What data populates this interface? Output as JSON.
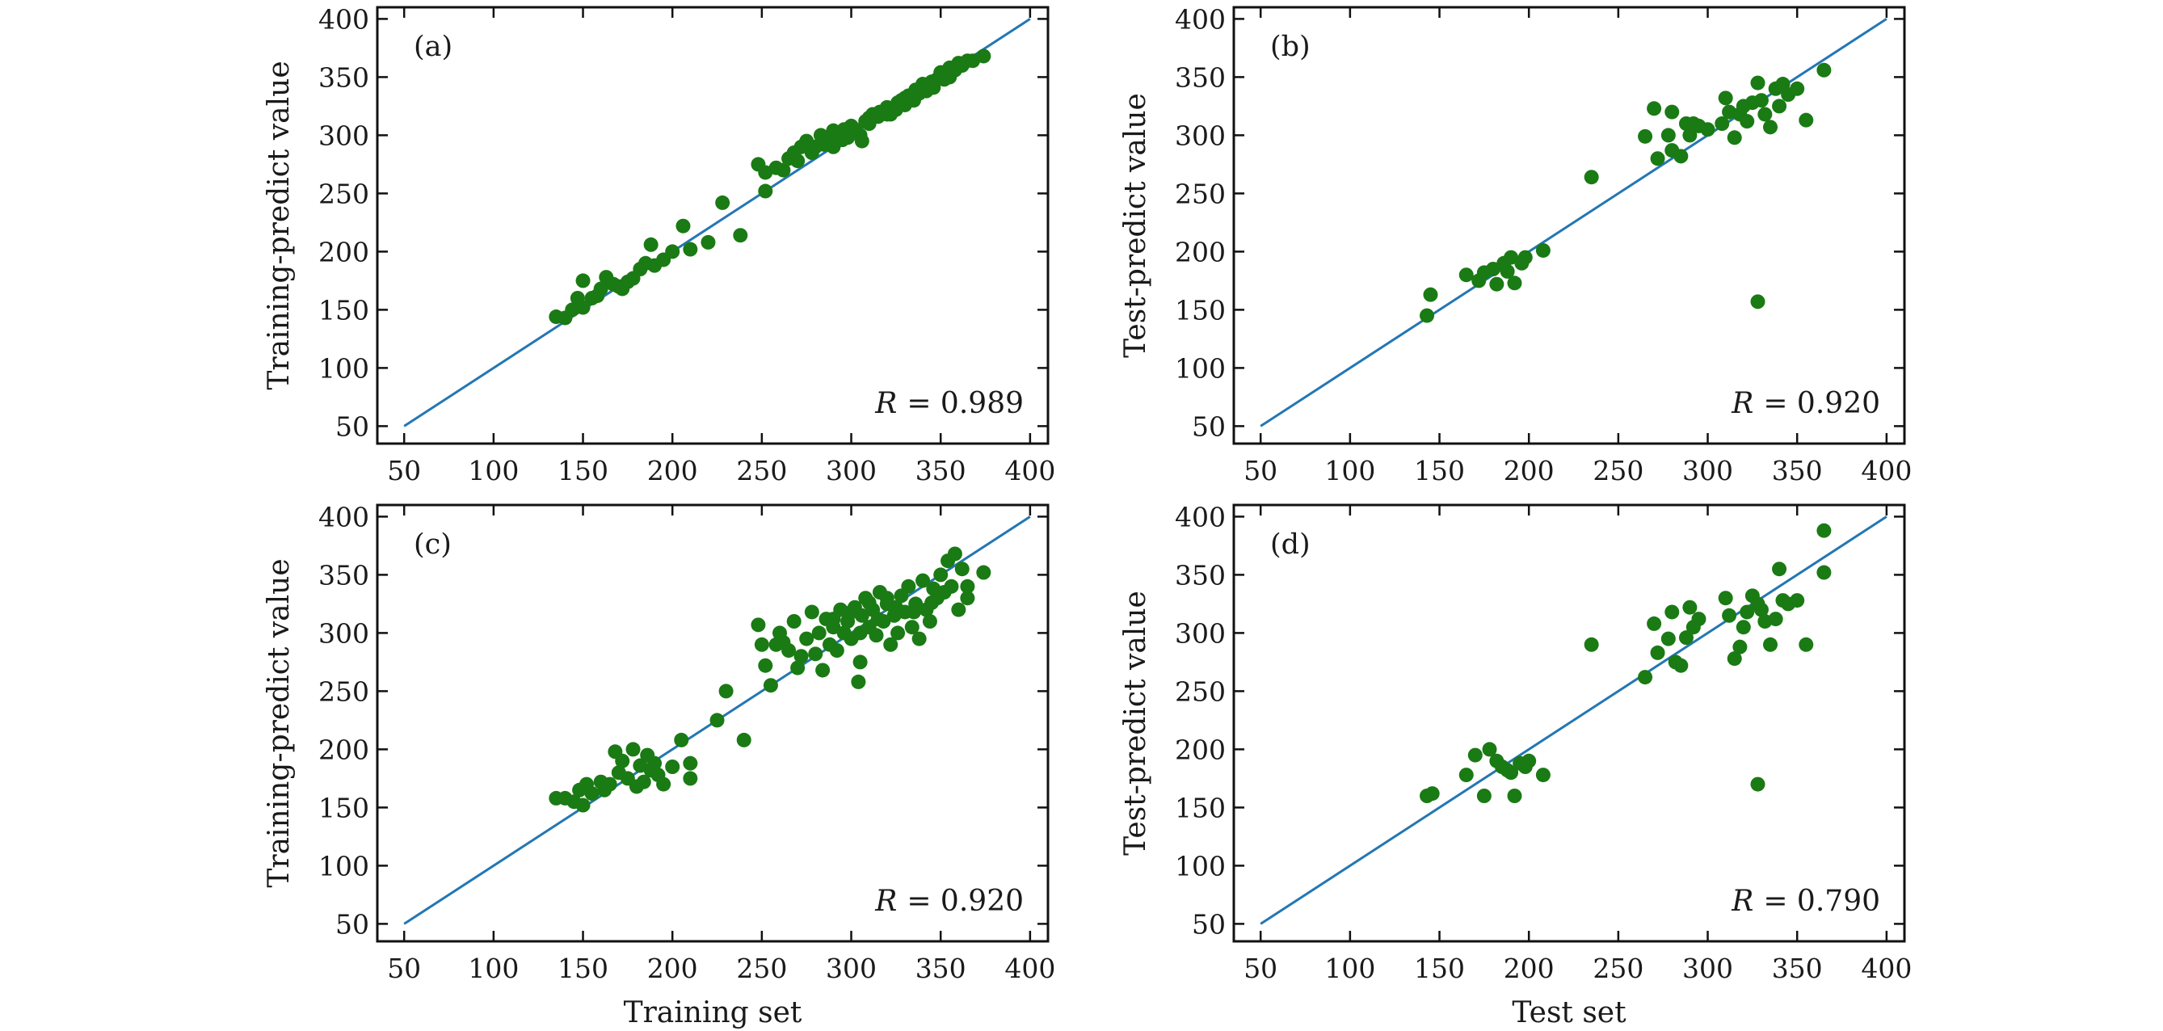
{
  "colors": {
    "points": "#1a7a14",
    "line": "#2477b3",
    "frame": "#111111"
  },
  "chart_data": [
    {
      "panel": "(a)",
      "type": "scatter",
      "xlabel": "",
      "ylabel": "Training-predict value",
      "xlim": [
        35,
        410
      ],
      "ylim": [
        35,
        410
      ],
      "xticks": [
        50,
        100,
        150,
        200,
        250,
        300,
        350,
        400
      ],
      "yticks": [
        50,
        100,
        150,
        200,
        250,
        300,
        350,
        400
      ],
      "r_name": "R",
      "r_value": "= 0.989",
      "reference_line": [
        [
          50,
          50
        ],
        [
          400,
          400
        ]
      ],
      "points": [
        [
          135,
          144
        ],
        [
          140,
          143
        ],
        [
          144,
          150
        ],
        [
          147,
          160
        ],
        [
          150,
          152
        ],
        [
          150,
          175
        ],
        [
          155,
          160
        ],
        [
          158,
          162
        ],
        [
          160,
          168
        ],
        [
          163,
          178
        ],
        [
          167,
          172
        ],
        [
          170,
          170
        ],
        [
          172,
          168
        ],
        [
          175,
          174
        ],
        [
          178,
          177
        ],
        [
          182,
          185
        ],
        [
          185,
          190
        ],
        [
          188,
          206
        ],
        [
          190,
          188
        ],
        [
          195,
          193
        ],
        [
          200,
          200
        ],
        [
          206,
          222
        ],
        [
          210,
          202
        ],
        [
          220,
          208
        ],
        [
          228,
          242
        ],
        [
          238,
          214
        ],
        [
          248,
          275
        ],
        [
          252,
          252
        ],
        [
          252,
          268
        ],
        [
          258,
          272
        ],
        [
          262,
          270
        ],
        [
          265,
          280
        ],
        [
          268,
          285
        ],
        [
          270,
          278
        ],
        [
          272,
          290
        ],
        [
          275,
          295
        ],
        [
          278,
          285
        ],
        [
          280,
          290
        ],
        [
          283,
          300
        ],
        [
          285,
          292
        ],
        [
          288,
          295
        ],
        [
          290,
          304
        ],
        [
          292,
          300
        ],
        [
          295,
          296
        ],
        [
          298,
          298
        ],
        [
          300,
          308
        ],
        [
          302,
          305
        ],
        [
          305,
          300
        ],
        [
          308,
          312
        ],
        [
          310,
          310
        ],
        [
          312,
          318
        ],
        [
          315,
          316
        ],
        [
          318,
          320
        ],
        [
          320,
          324
        ],
        [
          322,
          318
        ],
        [
          325,
          322
        ],
        [
          328,
          330
        ],
        [
          330,
          326
        ],
        [
          332,
          334
        ],
        [
          335,
          330
        ],
        [
          338,
          336
        ],
        [
          340,
          344
        ],
        [
          342,
          338
        ],
        [
          345,
          346
        ],
        [
          348,
          348
        ],
        [
          350,
          352
        ],
        [
          352,
          348
        ],
        [
          355,
          358
        ],
        [
          358,
          356
        ],
        [
          360,
          362
        ],
        [
          362,
          360
        ],
        [
          365,
          364
        ],
        [
          368,
          364
        ],
        [
          374,
          368
        ],
        [
          290,
          290
        ],
        [
          300,
          302
        ],
        [
          310,
          315
        ],
        [
          320,
          318
        ],
        [
          330,
          332
        ],
        [
          340,
          340
        ],
        [
          350,
          354
        ],
        [
          355,
          350
        ],
        [
          296,
          305
        ],
        [
          306,
          295
        ],
        [
          316,
          320
        ],
        [
          326,
          328
        ],
        [
          336,
          339
        ],
        [
          346,
          341
        ]
      ]
    },
    {
      "panel": "(b)",
      "type": "scatter",
      "xlabel": "",
      "ylabel": "Test-predict value",
      "xlim": [
        35,
        410
      ],
      "ylim": [
        35,
        410
      ],
      "xticks": [
        50,
        100,
        150,
        200,
        250,
        300,
        350,
        400
      ],
      "yticks": [
        50,
        100,
        150,
        200,
        250,
        300,
        350,
        400
      ],
      "r_name": "R",
      "r_value": "= 0.920",
      "reference_line": [
        [
          50,
          50
        ],
        [
          400,
          400
        ]
      ],
      "points": [
        [
          143,
          145
        ],
        [
          145,
          163
        ],
        [
          165,
          180
        ],
        [
          172,
          175
        ],
        [
          175,
          182
        ],
        [
          180,
          185
        ],
        [
          182,
          172
        ],
        [
          186,
          190
        ],
        [
          188,
          183
        ],
        [
          190,
          195
        ],
        [
          192,
          173
        ],
        [
          196,
          190
        ],
        [
          198,
          195
        ],
        [
          208,
          201
        ],
        [
          235,
          264
        ],
        [
          265,
          299
        ],
        [
          270,
          323
        ],
        [
          272,
          280
        ],
        [
          278,
          300
        ],
        [
          280,
          320
        ],
        [
          280,
          287
        ],
        [
          285,
          282
        ],
        [
          288,
          310
        ],
        [
          290,
          300
        ],
        [
          292,
          310
        ],
        [
          295,
          308
        ],
        [
          300,
          305
        ],
        [
          308,
          310
        ],
        [
          310,
          332
        ],
        [
          312,
          320
        ],
        [
          315,
          298
        ],
        [
          318,
          318
        ],
        [
          320,
          325
        ],
        [
          322,
          312
        ],
        [
          325,
          328
        ],
        [
          328,
          345
        ],
        [
          330,
          330
        ],
        [
          332,
          318
        ],
        [
          335,
          307
        ],
        [
          338,
          340
        ],
        [
          340,
          325
        ],
        [
          342,
          344
        ],
        [
          345,
          335
        ],
        [
          350,
          340
        ],
        [
          355,
          313
        ],
        [
          365,
          356
        ],
        [
          328,
          157
        ]
      ]
    },
    {
      "panel": "(c)",
      "type": "scatter",
      "xlabel": "Training set",
      "ylabel": "Training-predict value",
      "xlim": [
        35,
        410
      ],
      "ylim": [
        35,
        410
      ],
      "xticks": [
        50,
        100,
        150,
        200,
        250,
        300,
        350,
        400
      ],
      "yticks": [
        50,
        100,
        150,
        200,
        250,
        300,
        350,
        400
      ],
      "r_name": "R",
      "r_value": "= 0.920",
      "reference_line": [
        [
          50,
          50
        ],
        [
          400,
          400
        ]
      ],
      "points": [
        [
          135,
          158
        ],
        [
          140,
          158
        ],
        [
          145,
          155
        ],
        [
          148,
          165
        ],
        [
          150,
          152
        ],
        [
          152,
          170
        ],
        [
          155,
          162
        ],
        [
          160,
          172
        ],
        [
          162,
          165
        ],
        [
          165,
          170
        ],
        [
          168,
          198
        ],
        [
          170,
          180
        ],
        [
          172,
          190
        ],
        [
          175,
          175
        ],
        [
          178,
          200
        ],
        [
          180,
          168
        ],
        [
          182,
          186
        ],
        [
          184,
          172
        ],
        [
          186,
          195
        ],
        [
          188,
          182
        ],
        [
          190,
          188
        ],
        [
          192,
          178
        ],
        [
          195,
          170
        ],
        [
          200,
          185
        ],
        [
          205,
          208
        ],
        [
          210,
          188
        ],
        [
          210,
          175
        ],
        [
          225,
          225
        ],
        [
          230,
          250
        ],
        [
          240,
          208
        ],
        [
          248,
          307
        ],
        [
          250,
          290
        ],
        [
          252,
          272
        ],
        [
          255,
          255
        ],
        [
          258,
          290
        ],
        [
          260,
          300
        ],
        [
          262,
          292
        ],
        [
          265,
          285
        ],
        [
          268,
          310
        ],
        [
          270,
          270
        ],
        [
          272,
          280
        ],
        [
          275,
          295
        ],
        [
          278,
          318
        ],
        [
          280,
          282
        ],
        [
          282,
          300
        ],
        [
          284,
          268
        ],
        [
          286,
          312
        ],
        [
          288,
          290
        ],
        [
          290,
          305
        ],
        [
          292,
          285
        ],
        [
          294,
          320
        ],
        [
          296,
          300
        ],
        [
          298,
          310
        ],
        [
          300,
          295
        ],
        [
          302,
          322
        ],
        [
          304,
          258
        ],
        [
          305,
          275
        ],
        [
          306,
          315
        ],
        [
          308,
          330
        ],
        [
          310,
          305
        ],
        [
          312,
          320
        ],
        [
          314,
          298
        ],
        [
          316,
          335
        ],
        [
          318,
          310
        ],
        [
          320,
          325
        ],
        [
          322,
          290
        ],
        [
          324,
          315
        ],
        [
          326,
          300
        ],
        [
          328,
          332
        ],
        [
          330,
          318
        ],
        [
          332,
          340
        ],
        [
          334,
          305
        ],
        [
          336,
          325
        ],
        [
          338,
          295
        ],
        [
          340,
          345
        ],
        [
          342,
          320
        ],
        [
          344,
          310
        ],
        [
          346,
          338
        ],
        [
          348,
          330
        ],
        [
          350,
          350
        ],
        [
          352,
          335
        ],
        [
          354,
          362
        ],
        [
          356,
          340
        ],
        [
          358,
          368
        ],
        [
          360,
          320
        ],
        [
          362,
          355
        ],
        [
          365,
          330
        ],
        [
          365,
          340
        ],
        [
          374,
          352
        ],
        [
          300,
          318
        ],
        [
          310,
          326
        ],
        [
          320,
          330
        ],
        [
          290,
          312
        ],
        [
          305,
          300
        ],
        [
          315,
          312
        ],
        [
          325,
          322
        ],
        [
          335,
          318
        ],
        [
          345,
          326
        ]
      ]
    },
    {
      "panel": "(d)",
      "type": "scatter",
      "xlabel": "Test set",
      "ylabel": "Test-predict value",
      "xlim": [
        35,
        410
      ],
      "ylim": [
        35,
        410
      ],
      "xticks": [
        50,
        100,
        150,
        200,
        250,
        300,
        350,
        400
      ],
      "yticks": [
        50,
        100,
        150,
        200,
        250,
        300,
        350,
        400
      ],
      "r_name": "R",
      "r_value": "= 0.790",
      "reference_line": [
        [
          50,
          50
        ],
        [
          400,
          400
        ]
      ],
      "points": [
        [
          143,
          160
        ],
        [
          146,
          162
        ],
        [
          165,
          178
        ],
        [
          170,
          195
        ],
        [
          175,
          160
        ],
        [
          178,
          200
        ],
        [
          182,
          190
        ],
        [
          185,
          185
        ],
        [
          188,
          182
        ],
        [
          190,
          180
        ],
        [
          192,
          160
        ],
        [
          195,
          188
        ],
        [
          198,
          185
        ],
        [
          200,
          190
        ],
        [
          208,
          178
        ],
        [
          235,
          290
        ],
        [
          265,
          262
        ],
        [
          270,
          308
        ],
        [
          272,
          283
        ],
        [
          278,
          295
        ],
        [
          280,
          318
        ],
        [
          282,
          275
        ],
        [
          285,
          272
        ],
        [
          288,
          296
        ],
        [
          290,
          322
        ],
        [
          292,
          305
        ],
        [
          295,
          312
        ],
        [
          310,
          330
        ],
        [
          312,
          315
        ],
        [
          315,
          278
        ],
        [
          318,
          288
        ],
        [
          320,
          305
        ],
        [
          322,
          318
        ],
        [
          325,
          332
        ],
        [
          328,
          325
        ],
        [
          330,
          320
        ],
        [
          332,
          310
        ],
        [
          335,
          290
        ],
        [
          338,
          312
        ],
        [
          340,
          355
        ],
        [
          342,
          328
        ],
        [
          345,
          325
        ],
        [
          350,
          328
        ],
        [
          355,
          290
        ],
        [
          365,
          388
        ],
        [
          365,
          352
        ],
        [
          328,
          170
        ]
      ]
    }
  ]
}
